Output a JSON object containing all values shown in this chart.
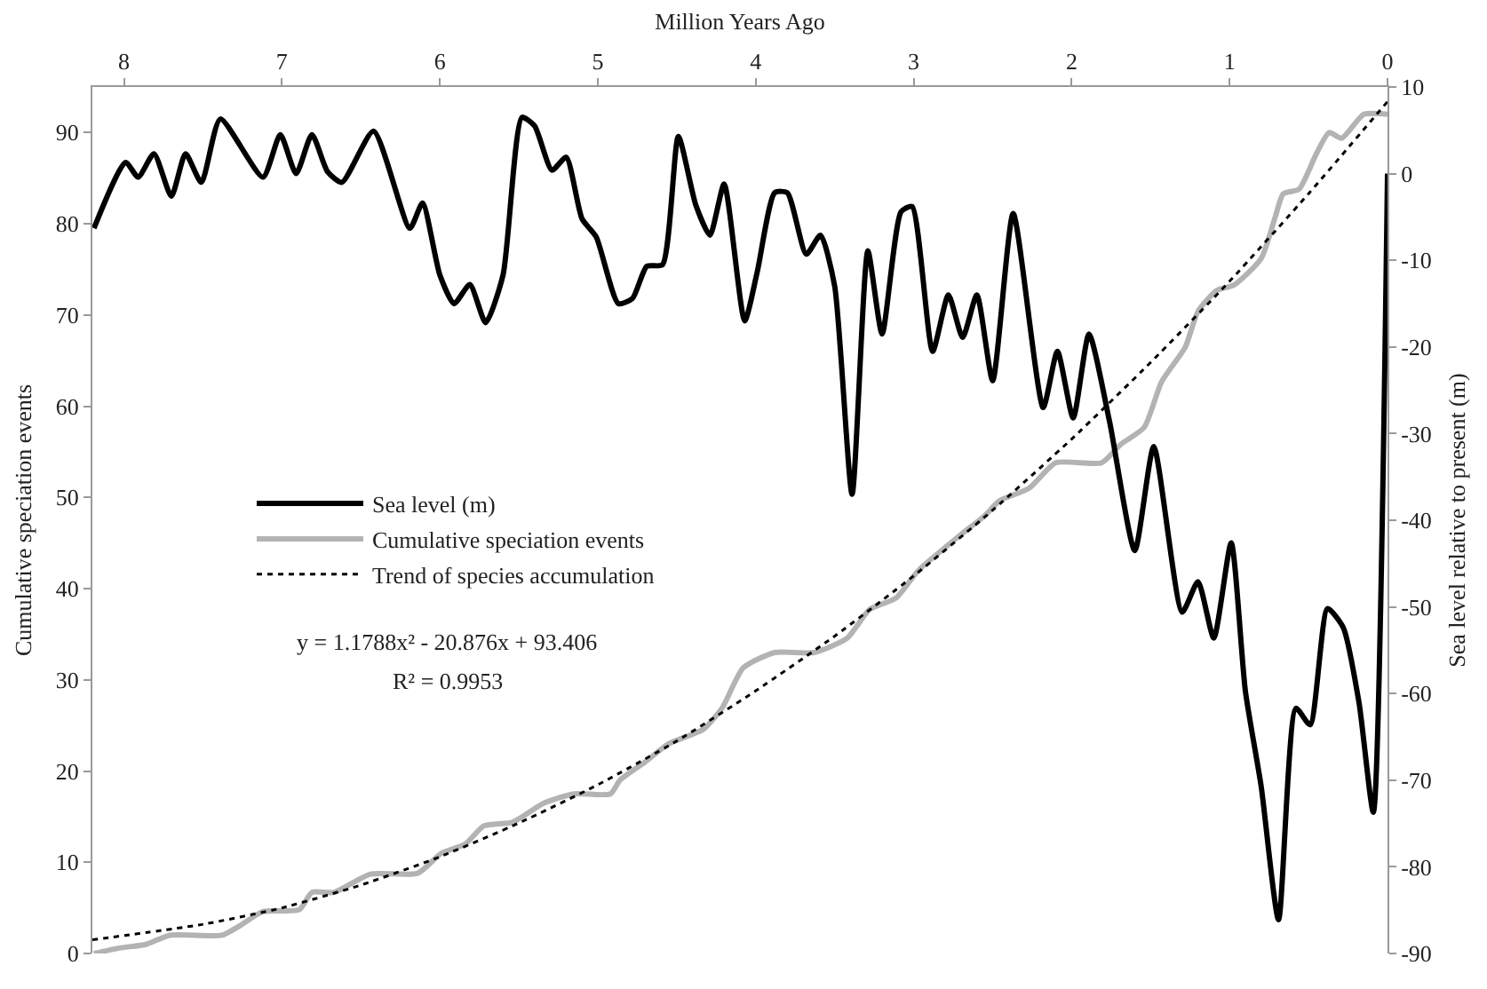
{
  "chart_data": {
    "type": "line",
    "xlabel": "Million Years Ago",
    "ylabel": "Cumulative speciation events",
    "y2label": "Sea level relative to present (m)",
    "xlim": [
      8.2,
      0
    ],
    "xticks": [
      8,
      7,
      6,
      5,
      4,
      3,
      2,
      1,
      0
    ],
    "ylim": [
      0,
      95
    ],
    "yticks": [
      0,
      10,
      20,
      30,
      40,
      50,
      60,
      70,
      80,
      90
    ],
    "y2lim": [
      -90,
      10
    ],
    "y2ticks": [
      -90,
      -80,
      -70,
      -60,
      -50,
      -40,
      -30,
      -20,
      -10,
      0,
      10
    ],
    "grid": false,
    "legend": "left",
    "marker": "none",
    "annotations": [
      "y = 1.1788x² - 20.876x + 93.406",
      "R² = 0.9953"
    ],
    "series": [
      {
        "name": "Sea level (m)",
        "color": "#000000",
        "axis": "y2",
        "line_style": "solid",
        "x": [
          8.19,
          7.99,
          7.91,
          7.81,
          7.7,
          7.61,
          7.51,
          7.39,
          7.12,
          7.01,
          6.91,
          6.81,
          6.71,
          6.62,
          6.42,
          6.19,
          6.11,
          6.0,
          5.91,
          5.81,
          5.71,
          5.6,
          5.48,
          5.4,
          5.29,
          5.2,
          5.1,
          5.01,
          4.87,
          4.78,
          4.69,
          4.59,
          4.49,
          4.38,
          4.29,
          4.2,
          4.07,
          3.99,
          3.88,
          3.8,
          3.68,
          3.59,
          3.5,
          3.39,
          3.29,
          3.2,
          3.08,
          3.01,
          2.88,
          2.78,
          2.69,
          2.6,
          2.5,
          2.37,
          2.18,
          2.09,
          1.99,
          1.89,
          1.76,
          1.6,
          1.48,
          1.3,
          1.2,
          1.1,
          0.99,
          0.9,
          0.8,
          0.69,
          0.58,
          0.49,
          0.38,
          0.28,
          0.18,
          0.09,
          0.0
        ],
        "values": [
          -6.3,
          1.3,
          -0.4,
          2.3,
          -2.6,
          2.3,
          -1.0,
          6.3,
          -0.4,
          4.5,
          0.0,
          4.5,
          0.2,
          -1.0,
          4.9,
          -6.3,
          -3.4,
          -11.7,
          -15.0,
          -12.8,
          -17.2,
          -11.7,
          6.5,
          5.5,
          0.4,
          1.9,
          -5.2,
          -7.3,
          -15.0,
          -14.4,
          -10.7,
          -10.5,
          4.3,
          -3.6,
          -7.1,
          -1.2,
          -17.0,
          -11.3,
          -2.2,
          -2.2,
          -9.3,
          -7.1,
          -13.0,
          -37.0,
          -8.9,
          -18.5,
          -4.4,
          -3.8,
          -20.5,
          -14.0,
          -18.9,
          -14.0,
          -23.9,
          -4.6,
          -27.0,
          -20.5,
          -28.2,
          -18.5,
          -28.6,
          -43.5,
          -31.5,
          -50.6,
          -47.1,
          -53.6,
          -42.6,
          -59.7,
          -70.7,
          -86.1,
          -61.7,
          -63.6,
          -50.2,
          -52.4,
          -61.1,
          -73.7,
          0.0
        ]
      },
      {
        "name": "Cumulative speciation events",
        "color": "#b3b3b3",
        "line_style": "solid",
        "x": [
          8.19,
          8.03,
          7.86,
          7.71,
          7.38,
          7.27,
          7.12,
          6.89,
          6.81,
          6.67,
          6.44,
          6.14,
          5.99,
          5.84,
          5.72,
          5.54,
          5.34,
          5.15,
          4.92,
          4.86,
          4.7,
          4.55,
          4.33,
          4.21,
          4.08,
          3.88,
          3.63,
          3.42,
          3.28,
          3.11,
          2.97,
          2.71,
          2.55,
          2.46,
          2.27,
          2.1,
          1.81,
          1.69,
          1.54,
          1.43,
          1.28,
          1.2,
          1.08,
          0.97,
          0.8,
          0.71,
          0.66,
          0.56,
          0.45,
          0.37,
          0.29,
          0.15,
          0.0
        ],
        "values": [
          0,
          0.6,
          1,
          2,
          2,
          3,
          4.6,
          4.8,
          6.7,
          6.7,
          8.7,
          8.8,
          11,
          12,
          14,
          14.4,
          16.5,
          17.5,
          17.5,
          19,
          21,
          23,
          24.6,
          27,
          31.3,
          33,
          33,
          34.6,
          37.7,
          39,
          42,
          45.8,
          48,
          49.6,
          51,
          53.8,
          53.8,
          55.8,
          57.7,
          62.7,
          66.5,
          70.4,
          72.7,
          73.3,
          76.2,
          80.8,
          83.3,
          83.8,
          87.7,
          90,
          89.4,
          92,
          92
        ]
      },
      {
        "name": "Trend of species accumulation",
        "color": "#000000",
        "line_style": "dotted",
        "x": [
          8.2,
          7.5,
          7,
          6.5,
          6,
          5.5,
          5,
          4.5,
          4,
          3.5,
          3,
          2.5,
          2,
          1.5,
          1,
          0.5,
          0
        ],
        "values": [
          1.5,
          3.2,
          5.0,
          7.5,
          10.6,
          14.3,
          18.5,
          23.3,
          28.8,
          34.8,
          41.4,
          48.6,
          56.4,
          64.8,
          73.7,
          83.3,
          93.4
        ]
      }
    ]
  }
}
